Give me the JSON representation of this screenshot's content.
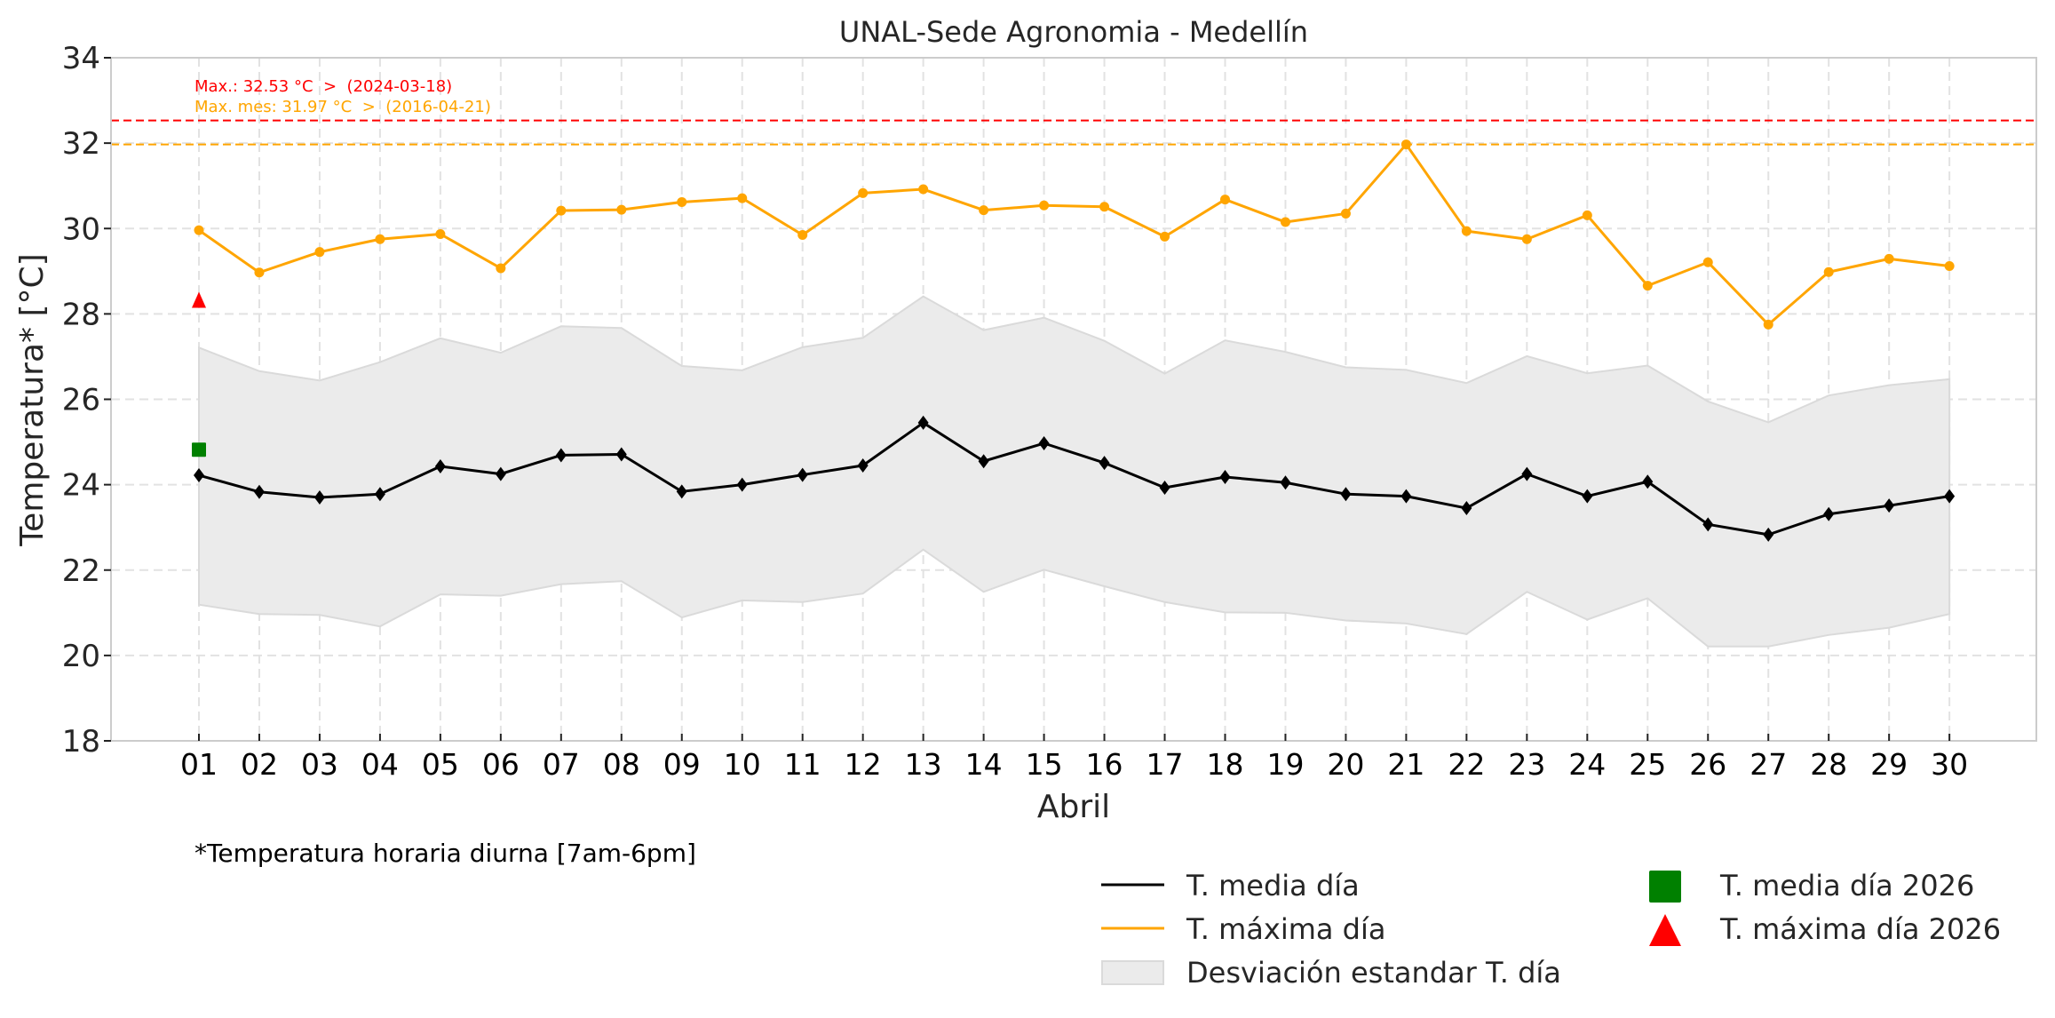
{
  "chart_data": {
    "type": "line",
    "title": "UNAL-Sede Agronomia - Medellín",
    "xlabel": "Abril",
    "ylabel": "Temperatura* [°C]",
    "ylim": [
      18,
      34
    ],
    "yticks": [
      "18",
      "20",
      "22",
      "24",
      "26",
      "28",
      "30",
      "32",
      "34"
    ],
    "ytick_values": [
      18,
      20,
      22,
      24,
      26,
      28,
      30,
      32,
      34
    ],
    "categories": [
      "01",
      "02",
      "03",
      "04",
      "05",
      "06",
      "07",
      "08",
      "09",
      "10",
      "11",
      "12",
      "13",
      "14",
      "15",
      "16",
      "17",
      "18",
      "19",
      "20",
      "21",
      "22",
      "23",
      "24",
      "25",
      "26",
      "27",
      "28",
      "29",
      "30"
    ],
    "grid": true,
    "series": [
      {
        "name": "T. media día",
        "color": "#000000",
        "marker": "diamond",
        "values": [
          24.22,
          23.83,
          23.7,
          23.78,
          24.43,
          24.25,
          24.69,
          24.71,
          23.84,
          24.0,
          24.23,
          24.45,
          25.45,
          24.55,
          24.97,
          24.51,
          23.93,
          24.18,
          24.05,
          23.78,
          23.73,
          23.45,
          24.25,
          23.73,
          24.07,
          23.07,
          22.83,
          23.31,
          23.51,
          23.73
        ]
      },
      {
        "name": "T. máxima día",
        "color": "#FFA500",
        "marker": "circle",
        "values": [
          29.96,
          28.97,
          29.45,
          29.75,
          29.87,
          29.07,
          30.42,
          30.44,
          30.62,
          30.71,
          29.85,
          30.83,
          30.92,
          30.43,
          30.54,
          30.51,
          29.81,
          30.68,
          30.15,
          30.35,
          31.97,
          29.94,
          29.75,
          30.31,
          28.66,
          29.21,
          27.75,
          28.98,
          29.29,
          29.12
        ]
      }
    ],
    "band": {
      "name": "Desviación estandar T. día",
      "color": "#EBEBEB",
      "upper": [
        27.21,
        26.66,
        26.44,
        26.87,
        27.43,
        27.09,
        27.71,
        27.67,
        26.78,
        26.68,
        27.22,
        27.44,
        28.41,
        27.62,
        27.91,
        27.37,
        26.6,
        27.38,
        27.11,
        26.75,
        26.69,
        26.38,
        27.01,
        26.61,
        26.79,
        25.95,
        25.46,
        26.09,
        26.33,
        26.47
      ],
      "lower": [
        21.19,
        20.97,
        20.95,
        20.68,
        21.43,
        21.4,
        21.67,
        21.74,
        20.89,
        21.29,
        21.25,
        21.45,
        22.48,
        21.49,
        22.01,
        21.62,
        21.25,
        21.01,
        21.0,
        20.82,
        20.75,
        20.5,
        21.49,
        20.84,
        21.34,
        20.21,
        20.21,
        20.48,
        20.65,
        20.97
      ]
    },
    "points_2026": [
      {
        "name": "T. media día 2026",
        "day": "01",
        "value": 24.82,
        "color": "#008000",
        "marker": "square"
      },
      {
        "name": "T. máxima día 2026",
        "day": "01",
        "value": 28.31,
        "color": "#FF0000",
        "marker": "triangle"
      }
    ],
    "reference_lines": [
      {
        "value": 32.53,
        "color": "#FF0000",
        "label": "Max.: 32.53 °C  >  (2024-03-18)"
      },
      {
        "value": 31.97,
        "color": "#FFA500",
        "label": "Max. mes: 31.97 °C  >  (2016-04-21)"
      }
    ],
    "footnote": "*Temperatura horaria diurna [7am-6pm]",
    "legend": {
      "placement": "bottom-right",
      "items": [
        {
          "label": "T. media día",
          "type": "line",
          "color": "#000000"
        },
        {
          "label": "T. máxima día",
          "type": "line",
          "color": "#FFA500"
        },
        {
          "label": "Desviación estandar T. día",
          "type": "patch",
          "color": "#EBEBEB"
        },
        {
          "label": "T. media día 2026",
          "type": "square",
          "color": "#008000"
        },
        {
          "label": "T. máxima día 2026",
          "type": "triangle",
          "color": "#FF0000"
        }
      ]
    }
  }
}
